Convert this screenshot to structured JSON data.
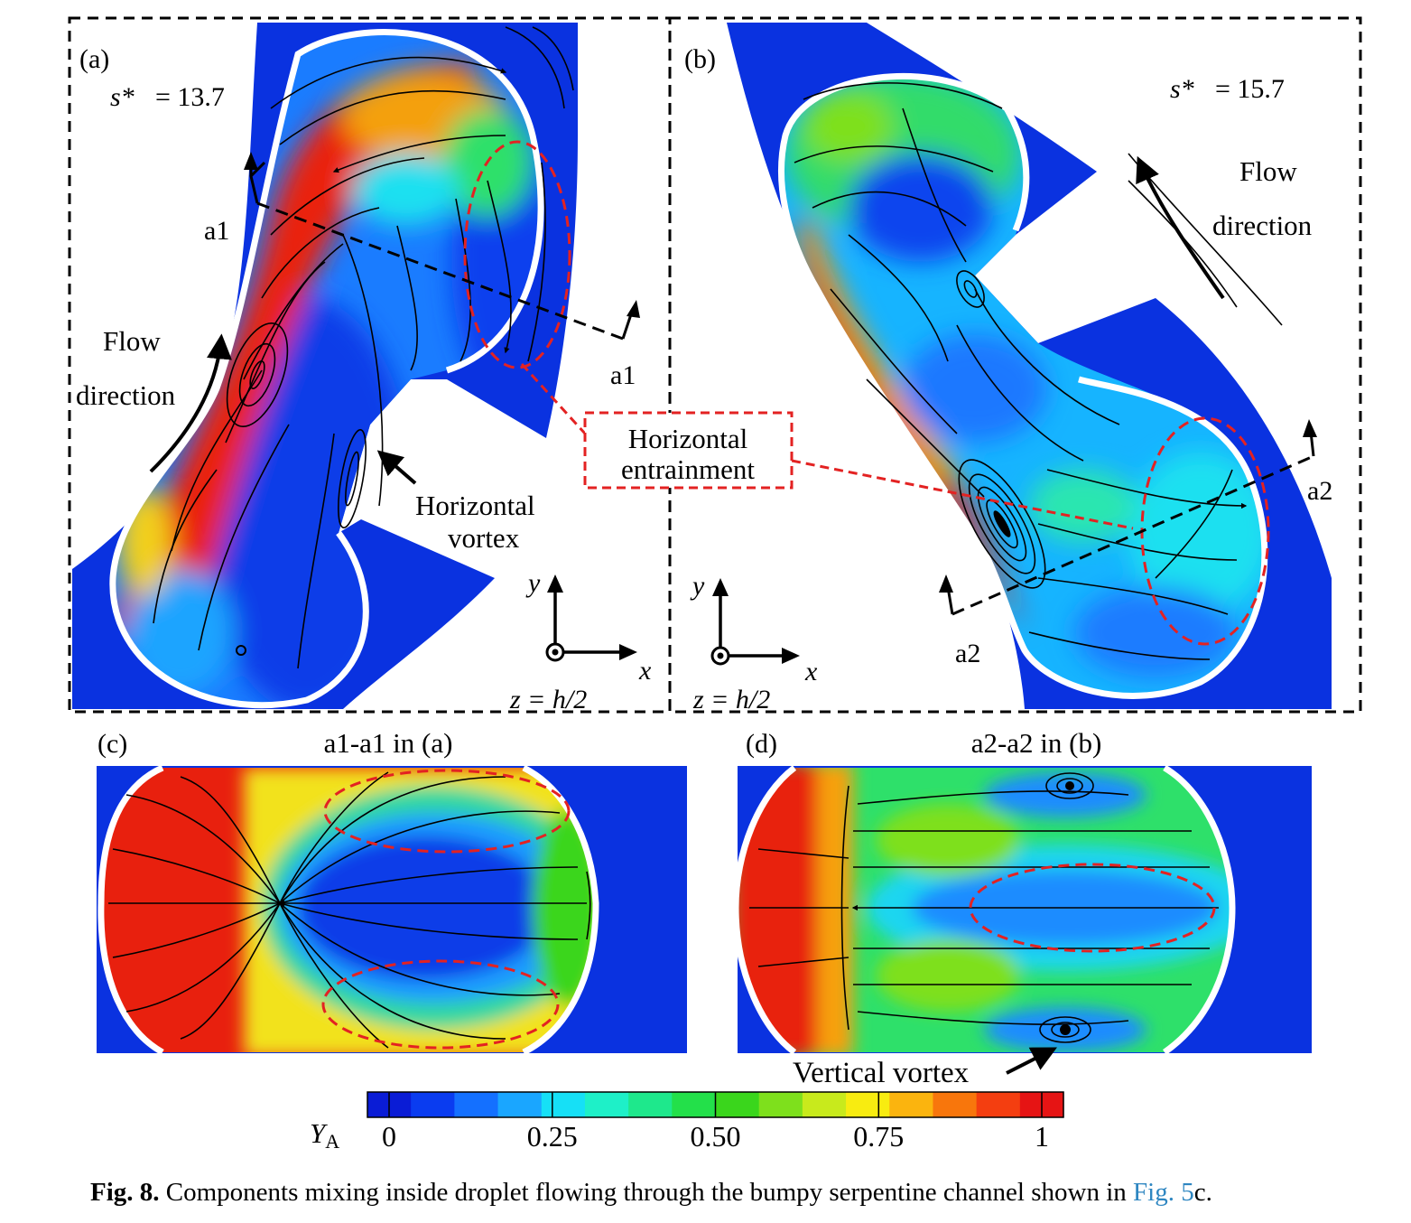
{
  "panels": {
    "a": {
      "label": "(a)",
      "s_label": "s*",
      "s_value": "= 13.7",
      "cut_label_top": "a1",
      "cut_label_bottom": "a1",
      "flow_line1": "Flow",
      "flow_line2": "direction",
      "vortex_line1": "Horizontal",
      "vortex_line2": "vortex",
      "axis_y": "y",
      "axis_x": "x",
      "plane": "z = h/2"
    },
    "b": {
      "label": "(b)",
      "s_label": "s*",
      "s_value": "= 15.7",
      "cut_label_left": "a2",
      "cut_label_right": "a2",
      "flow_line1": "Flow",
      "flow_line2": "direction",
      "axis_y": "y",
      "axis_x": "x",
      "plane": "z = h/2"
    },
    "c": {
      "label": "(c)",
      "title": "a1-a1 in (a)"
    },
    "d": {
      "label": "(d)",
      "title": "a2-a2 in (b)",
      "vortex_label": "Vertical vortex"
    }
  },
  "callout": {
    "line1": "Horizontal",
    "line2": "entrainment"
  },
  "colorbar": {
    "variable": "Y",
    "subscript": "A",
    "ticks": [
      "0",
      "0.25",
      "0.50",
      "0.75",
      "1"
    ],
    "range": [
      0,
      1
    ],
    "colors": [
      "#0a1cd6",
      "#0a3cf0",
      "#1470ff",
      "#1aa6ff",
      "#16e0f6",
      "#1ef0c8",
      "#1ee88c",
      "#23e04a",
      "#3ad61c",
      "#7ee01c",
      "#c8ea1c",
      "#f8ec10",
      "#fbb40e",
      "#f8760c",
      "#f43e10",
      "#e61414"
    ]
  },
  "caption": {
    "fig_label": "Fig. 8.",
    "text": " Components mixing inside droplet flowing through the bumpy serpentine channel shown in ",
    "link": "Fig. 5",
    "suffix": "c."
  },
  "colors": {
    "channel_blue": "#0a32e0",
    "droplet_red": "#e8200e",
    "interface_white": "#ffffff",
    "annotation_red": "#e32222"
  }
}
